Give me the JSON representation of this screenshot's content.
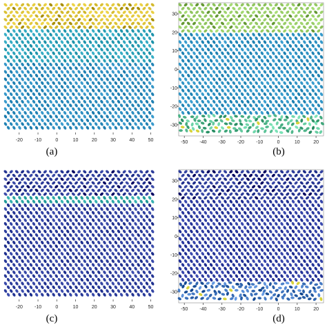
{
  "chart_data": [
    {
      "id": "a",
      "type": "scatter",
      "caption": "(a)",
      "title": "",
      "xlabel": "",
      "ylabel": "",
      "xlim": [
        -28,
        52
      ],
      "xticks": [
        -20,
        -10,
        0,
        10,
        20,
        30,
        40,
        50
      ],
      "yticks": [],
      "bands": [
        {
          "y_range": [
            0.82,
            1.0
          ],
          "pattern": "chevron",
          "color": "#e0c63a"
        },
        {
          "y_range": [
            0.55,
            0.82
          ],
          "pattern": "diagonal",
          "color": "#2aa0b8"
        },
        {
          "y_range": [
            0.0,
            0.55
          ],
          "pattern": "diagonal",
          "color": "#2b8cbe"
        }
      ]
    },
    {
      "id": "b",
      "type": "scatter",
      "caption": "(b)",
      "title": "",
      "xlabel": "",
      "ylabel": "",
      "xlim": [
        -53,
        24
      ],
      "ylim": [
        -36,
        36
      ],
      "xticks": [
        -50,
        -40,
        -30,
        -20,
        -10,
        0,
        10,
        20
      ],
      "yticks": [
        30,
        20,
        10,
        0,
        -10,
        -20,
        -30
      ],
      "bands": [
        {
          "y_range": [
            0.78,
            1.0
          ],
          "pattern": "chevron",
          "color": "#9bd06a"
        },
        {
          "y_range": [
            0.15,
            0.78
          ],
          "pattern": "diagonal",
          "color": "#2b8fc0"
        },
        {
          "y_range": [
            0.0,
            0.15
          ],
          "pattern": "noisy",
          "color": "#52b88d"
        }
      ]
    },
    {
      "id": "c",
      "type": "scatter",
      "caption": "(c)",
      "title": "",
      "xlabel": "",
      "ylabel": "",
      "xlim": [
        -28,
        52
      ],
      "xticks": [
        -20,
        -10,
        0,
        10,
        20,
        30,
        40,
        50
      ],
      "yticks": [],
      "bands": [
        {
          "y_range": [
            0.82,
            1.0
          ],
          "pattern": "chevron",
          "color": "#2c3c99"
        },
        {
          "y_range": [
            0.74,
            0.82
          ],
          "pattern": "boundary",
          "color": "#2aa3a3"
        },
        {
          "y_range": [
            0.0,
            0.74
          ],
          "pattern": "diagonal",
          "color": "#2d3e9d"
        }
      ]
    },
    {
      "id": "d",
      "type": "scatter",
      "caption": "(d)",
      "title": "",
      "xlabel": "",
      "ylabel": "",
      "xlim": [
        -53,
        24
      ],
      "ylim": [
        -36,
        36
      ],
      "xticks": [
        -50,
        -40,
        -30,
        -20,
        -10,
        0,
        10,
        20
      ],
      "yticks": [
        30,
        20,
        10,
        0,
        -10,
        -20,
        -30
      ],
      "bands": [
        {
          "y_range": [
            0.78,
            1.0
          ],
          "pattern": "chevron",
          "color": "#2b3a97"
        },
        {
          "y_range": [
            0.15,
            0.78
          ],
          "pattern": "diagonal",
          "color": "#2c3ba0"
        },
        {
          "y_range": [
            0.0,
            0.15
          ],
          "pattern": "noisy",
          "color": "#3a6fb8"
        }
      ]
    }
  ]
}
